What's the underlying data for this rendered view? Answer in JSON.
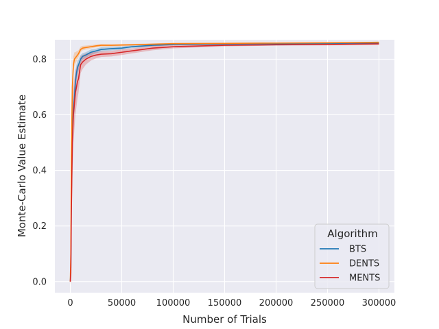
{
  "chart_data": {
    "type": "line",
    "title": "",
    "xlabel": "Number of Trials",
    "ylabel": "Monte-Carlo Value Estimate",
    "xlim": [
      -15000,
      315000
    ],
    "ylim": [
      -0.04,
      0.87
    ],
    "xticks": [
      0,
      50000,
      100000,
      150000,
      200000,
      250000,
      300000
    ],
    "xtick_labels": [
      "0",
      "50000",
      "100000",
      "150000",
      "200000",
      "250000",
      "300000"
    ],
    "yticks": [
      0.0,
      0.2,
      0.4,
      0.6,
      0.8
    ],
    "ytick_labels": [
      "0.0",
      "0.2",
      "0.4",
      "0.6",
      "0.8"
    ],
    "grid": true,
    "background": "#eaeaf2",
    "legend": {
      "title": "Algorithm",
      "placement": "lower-right"
    },
    "series": [
      {
        "name": "BTS",
        "color": "#1f77b4",
        "x": [
          0,
          500,
          1000,
          2000,
          3000,
          4000,
          5000,
          6000,
          7000,
          8000,
          10000,
          12000,
          15000,
          20000,
          25000,
          30000,
          40000,
          50000,
          60000,
          80000,
          100000,
          150000,
          200000,
          250000,
          300000
        ],
        "y": [
          0.0,
          0.05,
          0.3,
          0.55,
          0.62,
          0.66,
          0.72,
          0.75,
          0.77,
          0.78,
          0.8,
          0.81,
          0.815,
          0.825,
          0.83,
          0.835,
          0.838,
          0.84,
          0.845,
          0.85,
          0.853,
          0.855,
          0.856,
          0.857,
          0.858
        ],
        "band": [
          0.0,
          0.03,
          0.06,
          0.06,
          0.05,
          0.05,
          0.04,
          0.03,
          0.025,
          0.02,
          0.015,
          0.012,
          0.01,
          0.01,
          0.008,
          0.008,
          0.007,
          0.006,
          0.005,
          0.004,
          0.003,
          0.002,
          0.002,
          0.002,
          0.002
        ]
      },
      {
        "name": "DENTS",
        "color": "#ff7f0e",
        "x": [
          0,
          500,
          1000,
          2000,
          3000,
          4000,
          5000,
          6000,
          7000,
          8000,
          10000,
          12000,
          15000,
          20000,
          25000,
          30000,
          40000,
          50000,
          60000,
          80000,
          100000,
          150000,
          200000,
          250000,
          300000
        ],
        "y": [
          0.0,
          0.1,
          0.45,
          0.7,
          0.78,
          0.8,
          0.805,
          0.81,
          0.815,
          0.82,
          0.835,
          0.84,
          0.842,
          0.845,
          0.848,
          0.85,
          0.85,
          0.851,
          0.852,
          0.854,
          0.856,
          0.857,
          0.858,
          0.859,
          0.861
        ],
        "band": [
          0.0,
          0.04,
          0.07,
          0.05,
          0.03,
          0.025,
          0.02,
          0.018,
          0.015,
          0.012,
          0.01,
          0.008,
          0.007,
          0.006,
          0.005,
          0.005,
          0.004,
          0.004,
          0.003,
          0.003,
          0.003,
          0.002,
          0.002,
          0.002,
          0.002
        ]
      },
      {
        "name": "MENTS",
        "color": "#d62728",
        "x": [
          0,
          500,
          1000,
          2000,
          3000,
          4000,
          5000,
          6000,
          7000,
          8000,
          10000,
          12000,
          15000,
          20000,
          25000,
          30000,
          40000,
          50000,
          60000,
          80000,
          100000,
          150000,
          200000,
          250000,
          300000
        ],
        "y": [
          0.0,
          0.03,
          0.25,
          0.5,
          0.6,
          0.64,
          0.68,
          0.7,
          0.72,
          0.73,
          0.78,
          0.79,
          0.8,
          0.81,
          0.815,
          0.818,
          0.82,
          0.825,
          0.83,
          0.84,
          0.845,
          0.85,
          0.852,
          0.853,
          0.855
        ],
        "band": [
          0.0,
          0.04,
          0.1,
          0.12,
          0.1,
          0.09,
          0.08,
          0.07,
          0.06,
          0.05,
          0.03,
          0.025,
          0.02,
          0.015,
          0.012,
          0.01,
          0.01,
          0.01,
          0.009,
          0.008,
          0.006,
          0.004,
          0.003,
          0.003,
          0.003
        ]
      }
    ]
  }
}
